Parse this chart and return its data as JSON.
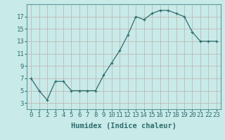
{
  "xlabel": "Humidex (Indice chaleur)",
  "x": [
    0,
    1,
    2,
    3,
    4,
    5,
    6,
    7,
    8,
    9,
    10,
    11,
    12,
    13,
    14,
    15,
    16,
    17,
    18,
    19,
    20,
    21,
    22,
    23
  ],
  "y": [
    7,
    5,
    3.5,
    6.5,
    6.5,
    5,
    5,
    5,
    5,
    7.5,
    9.5,
    11.5,
    14,
    17,
    16.5,
    17.5,
    18,
    18,
    17.5,
    17,
    14.5,
    13,
    13,
    13
  ],
  "line_color": "#2d6e6e",
  "marker": "+",
  "marker_color": "#2d6e6e",
  "bg_color": "#c8eae8",
  "grid_color": "#c0b8b8",
  "yticks": [
    3,
    5,
    7,
    9,
    11,
    13,
    15,
    17
  ],
  "xticks": [
    0,
    1,
    2,
    3,
    4,
    5,
    6,
    7,
    8,
    9,
    10,
    11,
    12,
    13,
    14,
    15,
    16,
    17,
    18,
    19,
    20,
    21,
    22,
    23
  ],
  "ylim": [
    2.0,
    19.0
  ],
  "xlim": [
    -0.5,
    23.5
  ],
  "tick_fontsize": 6.5,
  "label_fontsize": 7.5,
  "tick_color": "#2d6e6e",
  "label_color": "#2d6e6e"
}
